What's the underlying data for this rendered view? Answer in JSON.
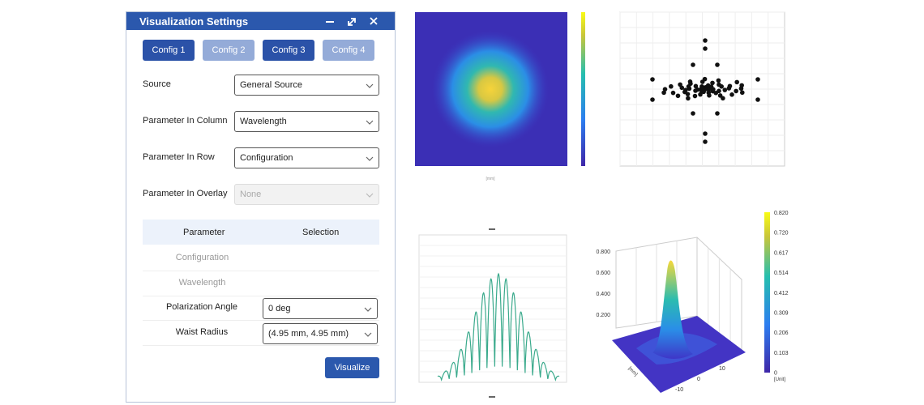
{
  "panel": {
    "title": "Visualization Settings",
    "tabs": [
      "Config 1",
      "Config 2",
      "Config 3",
      "Config 4"
    ],
    "tabs_active": [
      true,
      false,
      true,
      false
    ],
    "fields": [
      {
        "label": "Source",
        "value": "General Source",
        "disabled": false
      },
      {
        "label": "Parameter In Column",
        "value": "Wavelength",
        "disabled": false
      },
      {
        "label": "Parameter In Row",
        "value": "Configuration",
        "disabled": false
      },
      {
        "label": "Parameter In Overlay",
        "value": "None",
        "disabled": true
      }
    ],
    "table": {
      "headers": [
        "Parameter",
        "Selection"
      ],
      "rows": [
        {
          "parameter": "Configuration"
        },
        {
          "parameter": "Wavelength"
        },
        {
          "parameter": "Polarization Angle",
          "selection": "0 deg"
        },
        {
          "parameter": "Waist Radius",
          "selection": "(4.95 mm, 4.95 mm)"
        }
      ]
    },
    "button": "Visualize"
  },
  "plots": {
    "heatmap": {
      "axis_unit": "[mm]"
    },
    "surface": {
      "colorbar_ticks": [
        "0.820",
        "0.720",
        "0.617",
        "0.514",
        "0.412",
        "0.309",
        "0.206",
        "0.103",
        "0"
      ],
      "colorbar_unit": "[Unit]",
      "z_ticks": [
        "0.800",
        "0.600",
        "0.400",
        "0.200"
      ],
      "axis_ticks": [
        "10",
        "0",
        "-10"
      ],
      "axis_unit": "[mm]"
    }
  }
}
